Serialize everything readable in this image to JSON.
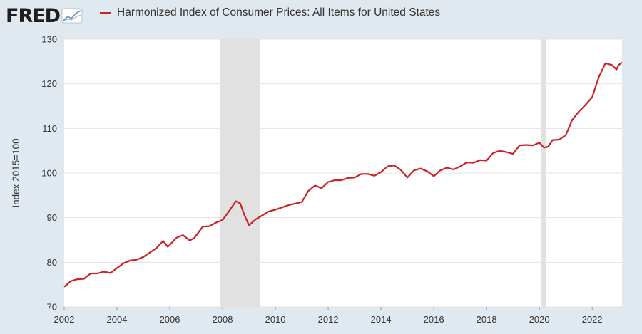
{
  "brand": {
    "logo_text": "FRED",
    "logo_icon": "sparkline-chart-icon"
  },
  "colors": {
    "series": "#cc2127",
    "plot_bg": "#ffffff",
    "page_bg": "#e1e9f0",
    "recession": "#e1e1e1",
    "grid": "#e3e3e3"
  },
  "chart_data": {
    "type": "line",
    "title": "Harmonized Index of Consumer Prices: All Items for United States",
    "ylabel": "Index 2015=100",
    "xlabel": "",
    "xlim": [
      2002.0,
      2023.13
    ],
    "ylim": [
      70,
      130
    ],
    "x_ticks": [
      "2002",
      "2004",
      "2006",
      "2008",
      "2010",
      "2012",
      "2014",
      "2016",
      "2018",
      "2020",
      "2022"
    ],
    "y_ticks": [
      "70",
      "80",
      "90",
      "100",
      "110",
      "120",
      "130"
    ],
    "grid": true,
    "legend_position": "top-left",
    "recessions": [
      [
        2007.92,
        2009.42
      ],
      [
        2020.08,
        2020.25
      ]
    ],
    "series": [
      {
        "name": "Harmonized Index of Consumer Prices: All Items for United States",
        "x": [
          2002.0,
          2002.25,
          2002.5,
          2002.75,
          2003.0,
          2003.25,
          2003.5,
          2003.75,
          2004.0,
          2004.25,
          2004.5,
          2004.75,
          2005.0,
          2005.25,
          2005.5,
          2005.75,
          2005.92,
          2006.0,
          2006.25,
          2006.5,
          2006.75,
          2006.92,
          2007.0,
          2007.25,
          2007.5,
          2007.75,
          2008.0,
          2008.25,
          2008.5,
          2008.67,
          2008.83,
          2009.0,
          2009.25,
          2009.5,
          2009.75,
          2010.0,
          2010.5,
          2011.0,
          2011.25,
          2011.5,
          2011.75,
          2012.0,
          2012.25,
          2012.5,
          2012.75,
          2013.0,
          2013.25,
          2013.5,
          2013.75,
          2014.0,
          2014.25,
          2014.5,
          2014.75,
          2015.0,
          2015.25,
          2015.5,
          2015.75,
          2016.0,
          2016.25,
          2016.5,
          2016.75,
          2017.0,
          2017.25,
          2017.5,
          2017.75,
          2018.0,
          2018.25,
          2018.5,
          2018.75,
          2019.0,
          2019.25,
          2019.5,
          2019.75,
          2020.0,
          2020.17,
          2020.33,
          2020.5,
          2020.75,
          2021.0,
          2021.25,
          2021.5,
          2021.75,
          2022.0,
          2022.25,
          2022.5,
          2022.75,
          2022.92,
          2023.0,
          2023.13
        ],
        "y": [
          74.5,
          75.8,
          76.2,
          76.3,
          77.5,
          77.5,
          77.9,
          77.6,
          78.7,
          79.8,
          80.4,
          80.6,
          81.2,
          82.2,
          83.2,
          84.8,
          83.5,
          83.9,
          85.5,
          86.1,
          84.9,
          85.4,
          86.0,
          88.0,
          88.1,
          88.9,
          89.5,
          91.5,
          93.7,
          93.2,
          90.5,
          88.3,
          89.6,
          90.5,
          91.4,
          91.8,
          92.8,
          93.5,
          96.0,
          97.2,
          96.6,
          98.0,
          98.4,
          98.4,
          98.9,
          99.0,
          99.8,
          99.8,
          99.4,
          100.2,
          101.5,
          101.7,
          100.7,
          99.0,
          100.6,
          101.0,
          100.4,
          99.3,
          100.6,
          101.2,
          100.8,
          101.5,
          102.4,
          102.3,
          102.9,
          102.8,
          104.5,
          105.0,
          104.7,
          104.3,
          106.2,
          106.3,
          106.2,
          106.8,
          105.7,
          105.9,
          107.4,
          107.5,
          108.5,
          112.0,
          113.8,
          115.3,
          117.0,
          121.5,
          124.6,
          124.2,
          123.2,
          124.2,
          124.8
        ]
      }
    ]
  }
}
